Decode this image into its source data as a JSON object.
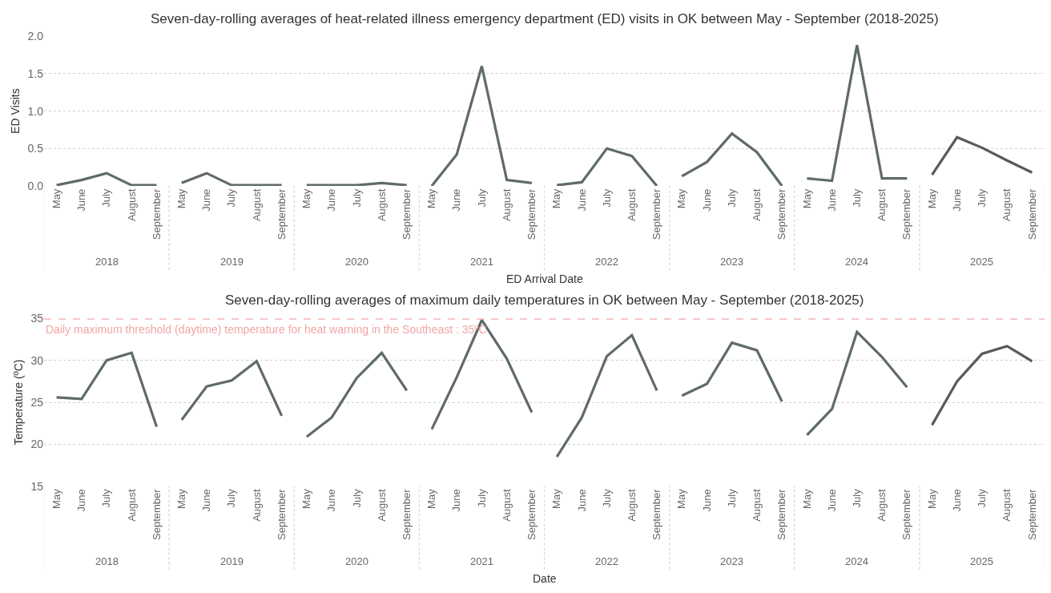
{
  "chart_data": [
    {
      "type": "line",
      "title": "Seven-day-rolling averages of heat-related illness emergency department (ED) visits in OK between May - September (2018-2025)",
      "xlabel": "ED Arrival Date",
      "ylabel": "ED Visits",
      "categories": [
        "May",
        "June",
        "July",
        "August",
        "September",
        "May",
        "June",
        "July",
        "August",
        "September",
        "May",
        "June",
        "July",
        "August",
        "September",
        "May",
        "June",
        "July",
        "August",
        "September",
        "May",
        "June",
        "July",
        "August",
        "September",
        "May",
        "June",
        "July",
        "August",
        "September",
        "May",
        "June",
        "July",
        "August",
        "September",
        "May",
        "June",
        "July",
        "August",
        "September"
      ],
      "annotations": [
        "2018",
        "2019",
        "2020",
        "2021",
        "2022",
        "2023",
        "2024",
        "2025"
      ],
      "ylim": [
        0,
        2
      ],
      "yticks": [
        {
          "value": 0,
          "label": "0.0"
        },
        {
          "value": 0.5,
          "label": "0.5"
        },
        {
          "value": 1,
          "label": "1.0"
        },
        {
          "value": 1.5,
          "label": "1.5"
        },
        {
          "value": 2,
          "label": "2.0"
        }
      ],
      "grid": "y",
      "line_style": "solid",
      "series": [
        {
          "color": "#5f6b68",
          "values": [
            0.01,
            0.08,
            0.17,
            0.01,
            0.01,
            null,
            null,
            null,
            null,
            null,
            null,
            null,
            null,
            null,
            null,
            null,
            null,
            null,
            null,
            null,
            null,
            null,
            null,
            null,
            null,
            null,
            null,
            null,
            null,
            null,
            null,
            null,
            null,
            null,
            null,
            null,
            null,
            null,
            null,
            null
          ]
        },
        {
          "color": "#5f6b68",
          "values": [
            null,
            null,
            null,
            null,
            null,
            0.04,
            0.17,
            0.01,
            0.01,
            0.01,
            null,
            null,
            null,
            null,
            null,
            null,
            null,
            null,
            null,
            null,
            null,
            null,
            null,
            null,
            null,
            null,
            null,
            null,
            null,
            null,
            null,
            null,
            null,
            null,
            null,
            null,
            null,
            null,
            null,
            null
          ]
        },
        {
          "color": "#5f6b68",
          "values": [
            null,
            null,
            null,
            null,
            null,
            null,
            null,
            null,
            null,
            null,
            0.01,
            0.01,
            0.01,
            0.04,
            0.01,
            null,
            null,
            null,
            null,
            null,
            null,
            null,
            null,
            null,
            null,
            null,
            null,
            null,
            null,
            null,
            null,
            null,
            null,
            null,
            null,
            null,
            null,
            null,
            null,
            null
          ]
        },
        {
          "color": "#5f6b68",
          "values": [
            null,
            null,
            null,
            null,
            null,
            null,
            null,
            null,
            null,
            null,
            null,
            null,
            null,
            null,
            null,
            0.0,
            0.42,
            1.6,
            0.08,
            0.04,
            null,
            null,
            null,
            null,
            null,
            null,
            null,
            null,
            null,
            null,
            null,
            null,
            null,
            null,
            null,
            null,
            null,
            null,
            null,
            null
          ]
        },
        {
          "color": "#5f6b68",
          "values": [
            null,
            null,
            null,
            null,
            null,
            null,
            null,
            null,
            null,
            null,
            null,
            null,
            null,
            null,
            null,
            null,
            null,
            null,
            null,
            null,
            0.01,
            0.05,
            0.5,
            0.4,
            0.0,
            null,
            null,
            null,
            null,
            null,
            null,
            null,
            null,
            null,
            null,
            null,
            null,
            null,
            null,
            null
          ]
        },
        {
          "color": "#5f6b68",
          "values": [
            null,
            null,
            null,
            null,
            null,
            null,
            null,
            null,
            null,
            null,
            null,
            null,
            null,
            null,
            null,
            null,
            null,
            null,
            null,
            null,
            null,
            null,
            null,
            null,
            null,
            0.13,
            0.32,
            0.7,
            0.45,
            0.0,
            null,
            null,
            null,
            null,
            null,
            null,
            null,
            null,
            null,
            null
          ]
        },
        {
          "color": "#5f6b68",
          "values": [
            null,
            null,
            null,
            null,
            null,
            null,
            null,
            null,
            null,
            null,
            null,
            null,
            null,
            null,
            null,
            null,
            null,
            null,
            null,
            null,
            null,
            null,
            null,
            null,
            null,
            null,
            null,
            null,
            null,
            null,
            0.1,
            0.07,
            1.88,
            0.1,
            0.1,
            null,
            null,
            null,
            null,
            null
          ]
        },
        {
          "color": "#555b59",
          "values": [
            null,
            null,
            null,
            null,
            null,
            null,
            null,
            null,
            null,
            null,
            null,
            null,
            null,
            null,
            null,
            null,
            null,
            null,
            null,
            null,
            null,
            null,
            null,
            null,
            null,
            null,
            null,
            null,
            null,
            null,
            null,
            null,
            null,
            null,
            null,
            0.15,
            0.65,
            0.51,
            0.34,
            0.18
          ]
        }
      ]
    },
    {
      "type": "line",
      "title": "Seven-day-rolling averages of maximum daily temperatures in OK between May - September (2018-2025)",
      "xlabel": "Date",
      "ylabel": "Temperature (ºC)",
      "categories": [
        "May",
        "June",
        "July",
        "August",
        "September",
        "May",
        "June",
        "July",
        "August",
        "September",
        "May",
        "June",
        "July",
        "August",
        "September",
        "May",
        "June",
        "July",
        "August",
        "September",
        "May",
        "June",
        "July",
        "August",
        "September",
        "May",
        "June",
        "July",
        "August",
        "September",
        "May",
        "June",
        "July",
        "August",
        "September",
        "May",
        "June",
        "July",
        "August",
        "September"
      ],
      "annotations": [
        "2018",
        "2019",
        "2020",
        "2021",
        "2022",
        "2023",
        "2024",
        "2025"
      ],
      "ylim": [
        15,
        35
      ],
      "yticks": [
        15,
        20,
        25,
        30,
        35
      ],
      "grid": "y",
      "line_style": "solid",
      "ref_lines": [
        {
          "axis": "y",
          "value": 35,
          "label": "Daily maximum threshold (daytime) temperature for heat warning in the Southeast : 35ºC",
          "color": "#f2a6a6",
          "line_style": "dashed"
        }
      ],
      "series": [
        {
          "color": "#5f6b68",
          "values": [
            25.6,
            25.4,
            30.0,
            30.9,
            22.1,
            null,
            null,
            null,
            null,
            null,
            null,
            null,
            null,
            null,
            null,
            null,
            null,
            null,
            null,
            null,
            null,
            null,
            null,
            null,
            null,
            null,
            null,
            null,
            null,
            null,
            null,
            null,
            null,
            null,
            null,
            null,
            null,
            null,
            null,
            null
          ]
        },
        {
          "color": "#5f6b68",
          "values": [
            null,
            null,
            null,
            null,
            null,
            22.9,
            26.9,
            27.6,
            29.9,
            23.4,
            null,
            null,
            null,
            null,
            null,
            null,
            null,
            null,
            null,
            null,
            null,
            null,
            null,
            null,
            null,
            null,
            null,
            null,
            null,
            null,
            null,
            null,
            null,
            null,
            null,
            null,
            null,
            null,
            null,
            null
          ]
        },
        {
          "color": "#5f6b68",
          "values": [
            null,
            null,
            null,
            null,
            null,
            null,
            null,
            null,
            null,
            null,
            20.9,
            23.2,
            27.9,
            30.9,
            26.4,
            null,
            null,
            null,
            null,
            null,
            null,
            null,
            null,
            null,
            null,
            null,
            null,
            null,
            null,
            null,
            null,
            null,
            null,
            null,
            null,
            null,
            null,
            null,
            null,
            null
          ]
        },
        {
          "color": "#5f6b68",
          "values": [
            null,
            null,
            null,
            null,
            null,
            null,
            null,
            null,
            null,
            null,
            null,
            null,
            null,
            null,
            null,
            21.8,
            28.0,
            34.8,
            30.2,
            23.8,
            null,
            null,
            null,
            null,
            null,
            null,
            null,
            null,
            null,
            null,
            null,
            null,
            null,
            null,
            null,
            null,
            null,
            null,
            null,
            null
          ]
        },
        {
          "color": "#5f6b68",
          "values": [
            null,
            null,
            null,
            null,
            null,
            null,
            null,
            null,
            null,
            null,
            null,
            null,
            null,
            null,
            null,
            null,
            null,
            null,
            null,
            null,
            18.5,
            23.2,
            30.5,
            33.0,
            26.4,
            null,
            null,
            null,
            null,
            null,
            null,
            null,
            null,
            null,
            null,
            null,
            null,
            null,
            null,
            null
          ]
        },
        {
          "color": "#5f6b68",
          "values": [
            null,
            null,
            null,
            null,
            null,
            null,
            null,
            null,
            null,
            null,
            null,
            null,
            null,
            null,
            null,
            null,
            null,
            null,
            null,
            null,
            null,
            null,
            null,
            null,
            null,
            25.8,
            27.2,
            32.1,
            31.2,
            25.1,
            null,
            null,
            null,
            null,
            null,
            null,
            null,
            null,
            null,
            null
          ]
        },
        {
          "color": "#5f6b68",
          "values": [
            null,
            null,
            null,
            null,
            null,
            null,
            null,
            null,
            null,
            null,
            null,
            null,
            null,
            null,
            null,
            null,
            null,
            null,
            null,
            null,
            null,
            null,
            null,
            null,
            null,
            null,
            null,
            null,
            null,
            null,
            21.1,
            24.2,
            33.4,
            30.4,
            26.8,
            null,
            null,
            null,
            null,
            null
          ]
        },
        {
          "color": "#555b59",
          "values": [
            null,
            null,
            null,
            null,
            null,
            null,
            null,
            null,
            null,
            null,
            null,
            null,
            null,
            null,
            null,
            null,
            null,
            null,
            null,
            null,
            null,
            null,
            null,
            null,
            null,
            null,
            null,
            null,
            null,
            null,
            null,
            null,
            null,
            null,
            null,
            22.3,
            27.5,
            30.8,
            31.7,
            29.9
          ]
        }
      ]
    }
  ]
}
